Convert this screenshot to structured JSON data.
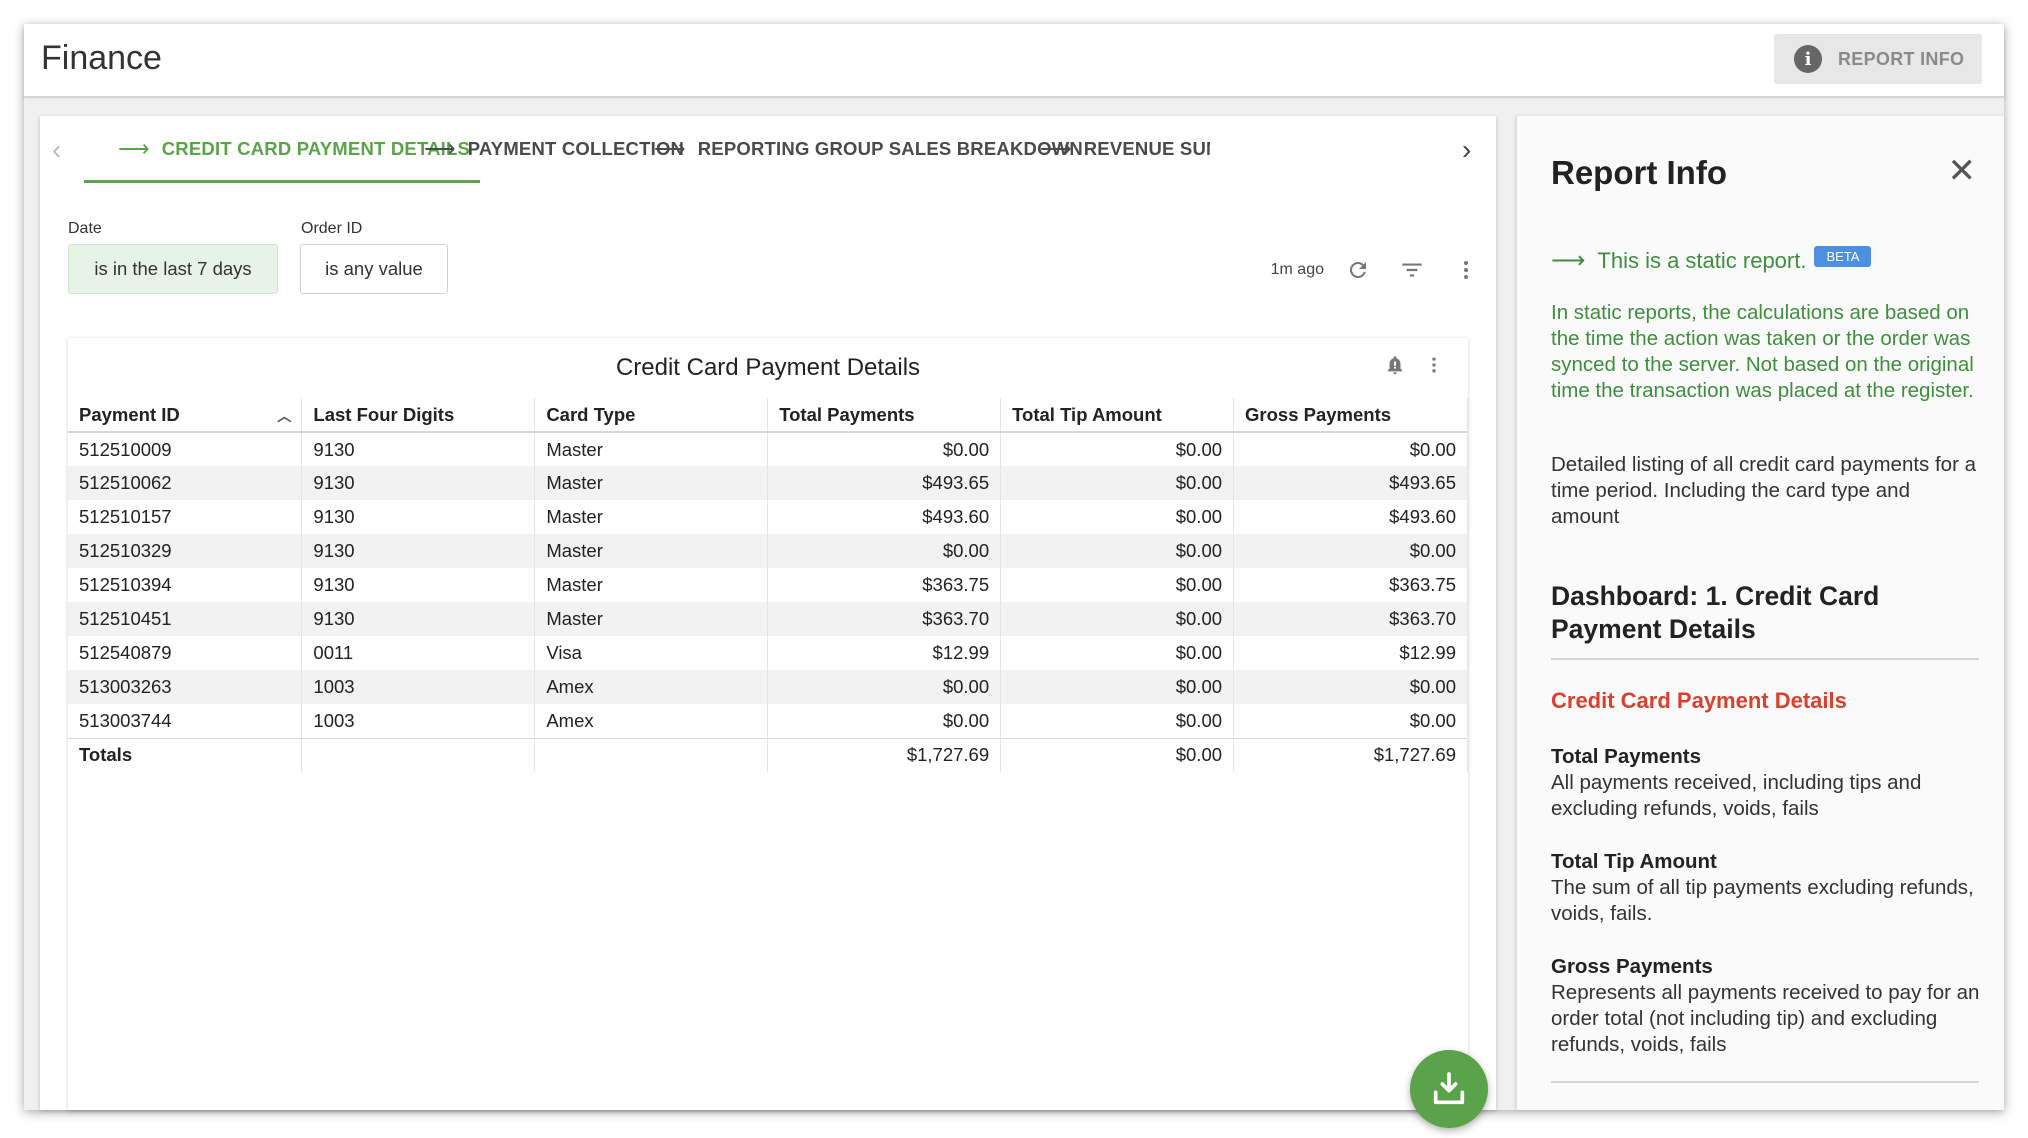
{
  "app": {
    "title": "Finance",
    "report_info_button": "REPORT INFO"
  },
  "tabs": [
    {
      "label": "CREDIT CARD PAYMENT DETAILS",
      "active": true
    },
    {
      "label": "PAYMENT COLLECTION",
      "active": false
    },
    {
      "label": "REPORTING GROUP SALES BREAKDOWN",
      "active": false
    },
    {
      "label": "REVENUE SUM",
      "active": false
    }
  ],
  "filters": {
    "date": {
      "label": "Date",
      "value": "is in the last 7 days"
    },
    "order_id": {
      "label": "Order ID",
      "value": "is any value"
    }
  },
  "toolbar": {
    "updated": "1m ago"
  },
  "table": {
    "title": "Credit Card Payment Details",
    "columns": [
      "Payment ID",
      "Last Four Digits",
      "Card Type",
      "Total Payments",
      "Total Tip Amount",
      "Gross Payments"
    ],
    "rows": [
      [
        "512510009",
        "9130",
        "Master",
        "$0.00",
        "$0.00",
        "$0.00"
      ],
      [
        "512510062",
        "9130",
        "Master",
        "$493.65",
        "$0.00",
        "$493.65"
      ],
      [
        "512510157",
        "9130",
        "Master",
        "$493.60",
        "$0.00",
        "$493.60"
      ],
      [
        "512510329",
        "9130",
        "Master",
        "$0.00",
        "$0.00",
        "$0.00"
      ],
      [
        "512510394",
        "9130",
        "Master",
        "$363.75",
        "$0.00",
        "$363.75"
      ],
      [
        "512510451",
        "9130",
        "Master",
        "$363.70",
        "$0.00",
        "$363.70"
      ],
      [
        "512540879",
        "0011",
        "Visa",
        "$12.99",
        "$0.00",
        "$12.99"
      ],
      [
        "513003263",
        "1003",
        "Amex",
        "$0.00",
        "$0.00",
        "$0.00"
      ],
      [
        "513003744",
        "1003",
        "Amex",
        "$0.00",
        "$0.00",
        "$0.00"
      ]
    ],
    "totals": [
      "Totals",
      "",
      "",
      "$1,727.69",
      "$0.00",
      "$1,727.69"
    ]
  },
  "info_panel": {
    "title": "Report Info",
    "static_label": "This is a static report.",
    "beta_badge": "BETA",
    "static_description": "In static reports, the calculations are based on the time the action was taken or the order was synced to the server. Not based on the original time the transaction was placed at the register.",
    "description": "Detailed listing of all credit card payments for a time period. Including the card type and amount",
    "dashboard": "Dashboard: 1. Credit Card Payment Details",
    "section_title": "Credit Card Payment Details",
    "definitions": [
      {
        "term": "Total Payments",
        "text": "All payments received, including tips and excluding refunds, voids, fails"
      },
      {
        "term": "Total Tip Amount",
        "text": "The sum of all tip payments excluding refunds, voids, fails."
      },
      {
        "term": "Gross Payments",
        "text": "Represents all payments received to pay for an order total (not including tip) and excluding refunds, voids, fails"
      }
    ]
  },
  "colors": {
    "accent_green": "#5aa34a",
    "info_green": "#3e8e3e",
    "section_red": "#d9402e",
    "beta_blue": "#4d8fe0"
  }
}
